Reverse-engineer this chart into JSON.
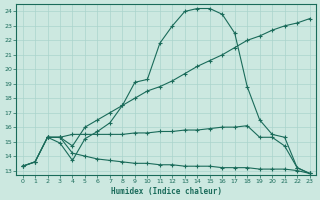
{
  "xlabel": "Humidex (Indice chaleur)",
  "ylabel": "",
  "bg_color": "#cce8e0",
  "line_color": "#1a6b5a",
  "grid_color": "#aad4cc",
  "xlim": [
    -0.5,
    23.5
  ],
  "ylim": [
    12.7,
    24.5
  ],
  "yticks": [
    13,
    14,
    15,
    16,
    17,
    18,
    19,
    20,
    21,
    22,
    23,
    24
  ],
  "xticks": [
    0,
    1,
    2,
    3,
    4,
    5,
    6,
    7,
    8,
    9,
    10,
    11,
    12,
    13,
    14,
    15,
    16,
    17,
    18,
    19,
    20,
    21,
    22,
    23
  ],
  "line1_x": [
    0,
    1,
    2,
    3,
    4,
    5,
    6,
    7,
    8,
    9,
    10,
    11,
    12,
    13,
    14,
    15,
    16,
    17,
    18,
    19,
    20,
    21,
    22,
    23
  ],
  "line1_y": [
    13.3,
    13.6,
    15.3,
    14.9,
    13.7,
    15.2,
    15.7,
    16.3,
    17.5,
    19.1,
    19.3,
    21.8,
    23.0,
    24.0,
    24.2,
    24.2,
    23.8,
    22.5,
    18.8,
    16.5,
    15.5,
    15.3,
    13.2,
    12.8
  ],
  "line2_x": [
    0,
    1,
    2,
    3,
    4,
    5,
    6,
    7,
    8,
    9,
    10,
    11,
    12,
    13,
    14,
    15,
    16,
    17,
    18,
    19,
    20,
    21,
    22,
    23
  ],
  "line2_y": [
    13.3,
    13.6,
    15.3,
    15.3,
    14.7,
    16.0,
    16.5,
    17.0,
    17.5,
    18.0,
    18.5,
    18.8,
    19.2,
    19.7,
    20.2,
    20.6,
    21.0,
    21.5,
    22.0,
    22.3,
    22.7,
    23.0,
    23.2,
    23.5
  ],
  "line3_x": [
    2,
    3,
    4,
    5,
    6,
    7,
    8,
    9,
    10,
    11,
    12,
    13,
    14,
    15,
    16,
    17,
    18,
    19,
    20,
    21,
    22,
    23
  ],
  "line3_y": [
    15.3,
    15.3,
    15.5,
    15.5,
    15.5,
    15.5,
    15.5,
    15.6,
    15.6,
    15.7,
    15.7,
    15.8,
    15.8,
    15.9,
    16.0,
    16.0,
    16.1,
    15.3,
    15.3,
    14.7,
    13.2,
    12.8
  ],
  "line4_x": [
    0,
    1,
    2,
    3,
    4,
    5,
    6,
    7,
    8,
    9,
    10,
    11,
    12,
    13,
    14,
    15,
    16,
    17,
    18,
    19,
    20,
    21,
    22,
    23
  ],
  "line4_y": [
    13.3,
    13.6,
    15.3,
    15.3,
    14.2,
    14.0,
    13.8,
    13.7,
    13.6,
    13.5,
    13.5,
    13.4,
    13.4,
    13.3,
    13.3,
    13.3,
    13.2,
    13.2,
    13.2,
    13.1,
    13.1,
    13.1,
    13.0,
    12.8
  ]
}
